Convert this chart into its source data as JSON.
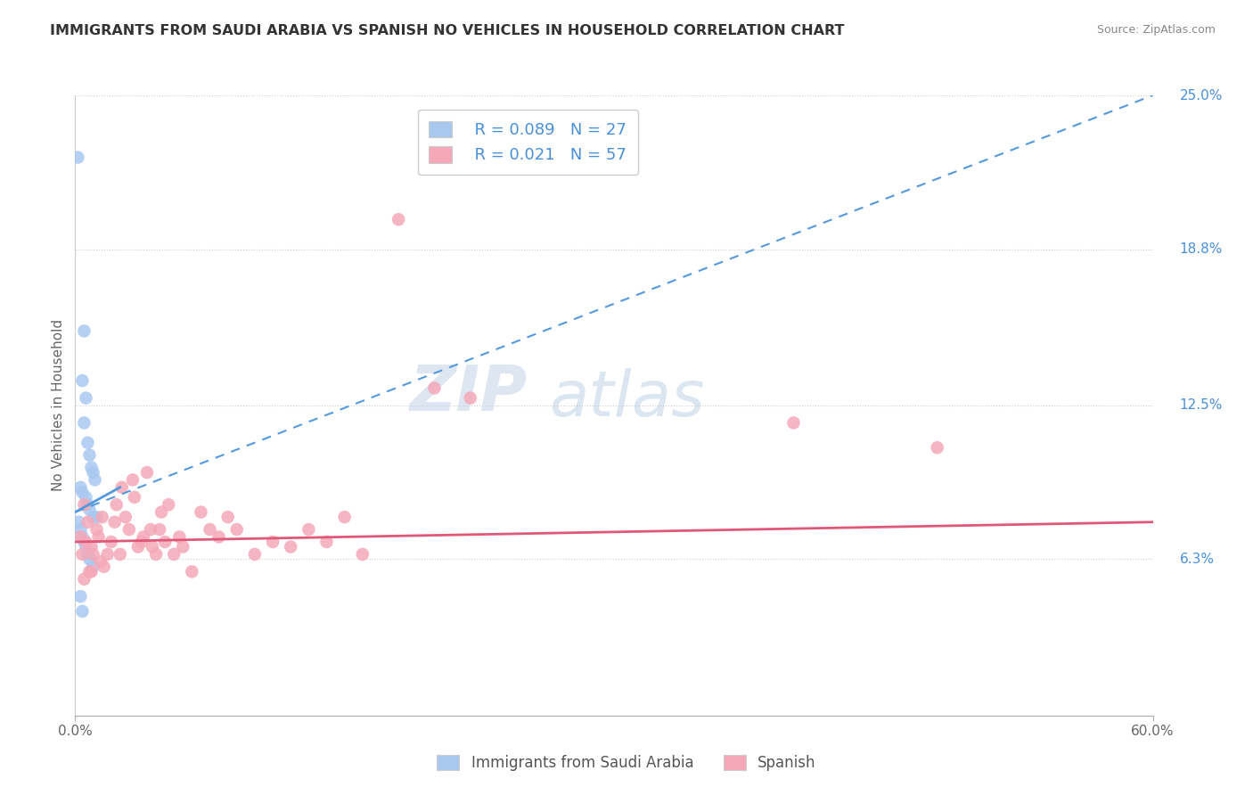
{
  "title": "IMMIGRANTS FROM SAUDI ARABIA VS SPANISH NO VEHICLES IN HOUSEHOLD CORRELATION CHART",
  "source": "Source: ZipAtlas.com",
  "xlabel": "",
  "ylabel": "No Vehicles in Household",
  "xlim": [
    0.0,
    60.0
  ],
  "ylim": [
    0.0,
    25.0
  ],
  "ytick_vals": [
    6.3,
    12.5,
    18.8,
    25.0
  ],
  "blue_r": "0.089",
  "blue_n": "27",
  "pink_r": "0.021",
  "pink_n": "57",
  "blue_color": "#a8c8f0",
  "pink_color": "#f5a8b8",
  "blue_line_color": "#5599dd",
  "pink_line_color": "#e05878",
  "blue_solid_line": [
    [
      0.0,
      8.2
    ],
    [
      2.5,
      9.2
    ]
  ],
  "blue_dash_line": [
    [
      0.0,
      8.2
    ],
    [
      60.0,
      25.0
    ]
  ],
  "pink_line": [
    [
      0.0,
      7.0
    ],
    [
      60.0,
      7.8
    ]
  ],
  "watermark_zip": "ZIP",
  "watermark_atlas": "atlas",
  "legend_label_blue": "Immigrants from Saudi Arabia",
  "legend_label_pink": "Spanish",
  "blue_points": [
    [
      0.15,
      22.5
    ],
    [
      0.5,
      15.5
    ],
    [
      0.4,
      13.5
    ],
    [
      0.6,
      12.8
    ],
    [
      0.5,
      11.8
    ],
    [
      0.7,
      11.0
    ],
    [
      0.8,
      10.5
    ],
    [
      0.9,
      10.0
    ],
    [
      1.0,
      9.8
    ],
    [
      1.1,
      9.5
    ],
    [
      0.3,
      9.2
    ],
    [
      0.4,
      9.0
    ],
    [
      0.6,
      8.8
    ],
    [
      0.7,
      8.5
    ],
    [
      0.8,
      8.3
    ],
    [
      1.0,
      8.0
    ],
    [
      1.2,
      8.0
    ],
    [
      0.2,
      7.8
    ],
    [
      0.3,
      7.5
    ],
    [
      0.4,
      7.2
    ],
    [
      0.5,
      7.0
    ],
    [
      0.6,
      6.8
    ],
    [
      0.7,
      6.5
    ],
    [
      0.8,
      6.3
    ],
    [
      1.0,
      6.0
    ],
    [
      0.3,
      4.8
    ],
    [
      0.4,
      4.2
    ]
  ],
  "pink_points": [
    [
      0.3,
      7.2
    ],
    [
      0.5,
      8.5
    ],
    [
      0.7,
      7.8
    ],
    [
      0.9,
      6.8
    ],
    [
      1.2,
      7.5
    ],
    [
      1.5,
      8.0
    ],
    [
      1.8,
      6.5
    ],
    [
      2.0,
      7.0
    ],
    [
      2.3,
      8.5
    ],
    [
      2.5,
      6.5
    ],
    [
      2.8,
      8.0
    ],
    [
      3.0,
      7.5
    ],
    [
      3.2,
      9.5
    ],
    [
      3.5,
      6.8
    ],
    [
      3.8,
      7.2
    ],
    [
      4.0,
      9.8
    ],
    [
      4.2,
      7.5
    ],
    [
      4.5,
      6.5
    ],
    [
      4.8,
      8.2
    ],
    [
      5.0,
      7.0
    ],
    [
      5.2,
      8.5
    ],
    [
      5.5,
      6.5
    ],
    [
      5.8,
      7.2
    ],
    [
      6.0,
      6.8
    ],
    [
      6.5,
      5.8
    ],
    [
      7.0,
      8.2
    ],
    [
      7.5,
      7.5
    ],
    [
      8.0,
      7.2
    ],
    [
      8.5,
      8.0
    ],
    [
      9.0,
      7.5
    ],
    [
      10.0,
      6.5
    ],
    [
      11.0,
      7.0
    ],
    [
      12.0,
      6.8
    ],
    [
      13.0,
      7.5
    ],
    [
      14.0,
      7.0
    ],
    [
      15.0,
      8.0
    ],
    [
      16.0,
      6.5
    ],
    [
      18.0,
      20.0
    ],
    [
      20.0,
      13.2
    ],
    [
      22.0,
      12.8
    ],
    [
      0.4,
      6.5
    ],
    [
      0.6,
      7.0
    ],
    [
      0.8,
      5.8
    ],
    [
      1.0,
      6.5
    ],
    [
      1.3,
      7.2
    ],
    [
      1.6,
      6.0
    ],
    [
      2.2,
      7.8
    ],
    [
      2.6,
      9.2
    ],
    [
      3.3,
      8.8
    ],
    [
      3.7,
      7.0
    ],
    [
      4.3,
      6.8
    ],
    [
      4.7,
      7.5
    ],
    [
      0.5,
      5.5
    ],
    [
      0.9,
      5.8
    ],
    [
      1.4,
      6.2
    ],
    [
      40.0,
      11.8
    ],
    [
      48.0,
      10.8
    ]
  ]
}
